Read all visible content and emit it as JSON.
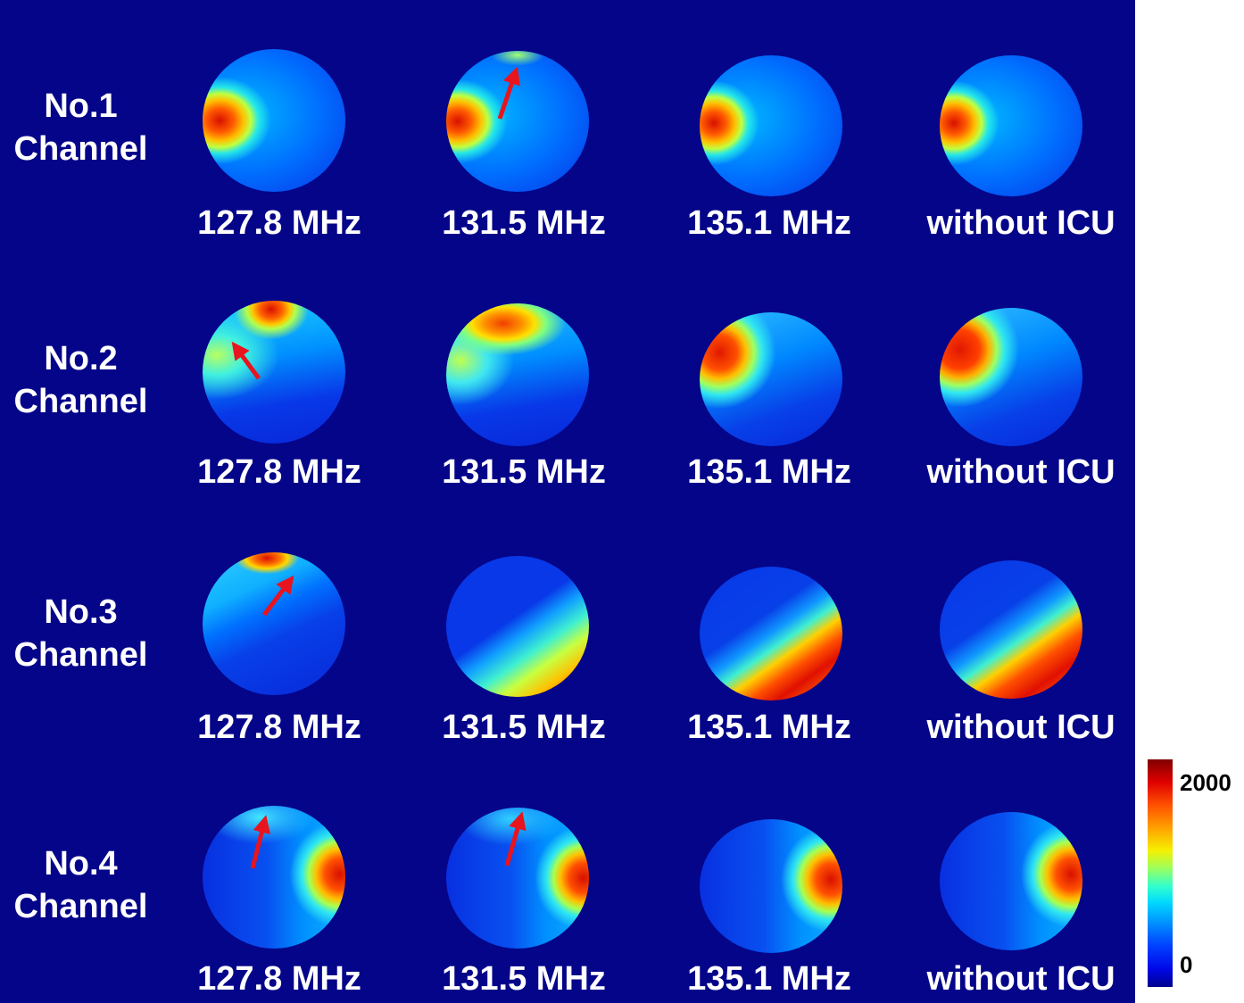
{
  "rows": [
    {
      "label_line1": "No.1",
      "label_line2": "Channel"
    },
    {
      "label_line1": "No.2",
      "label_line2": "Channel"
    },
    {
      "label_line1": "No.3",
      "label_line2": "Channel"
    },
    {
      "label_line1": "No.4",
      "label_line2": "Channel"
    }
  ],
  "columns": [
    "127.8 MHz",
    "131.5 MHz",
    "135.1 MHz",
    "without ICU"
  ],
  "colorbar": {
    "max_label": "2000",
    "min_label": "0"
  },
  "colors": {
    "background": "#05058a",
    "arrow": "#e8141e"
  }
}
